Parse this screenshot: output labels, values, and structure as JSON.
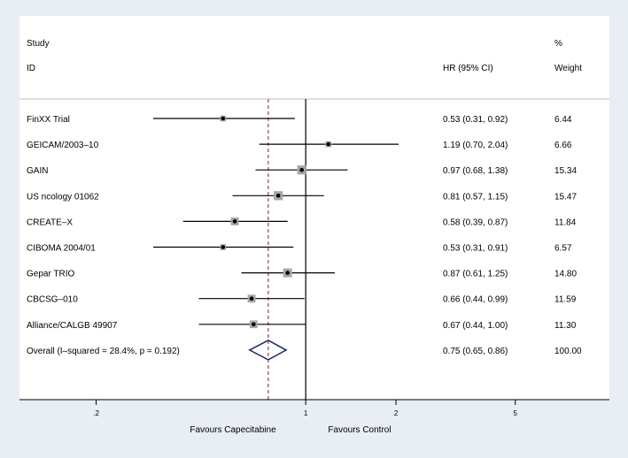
{
  "chart_data": {
    "type": "forest",
    "axis": {
      "scale": "log",
      "xlim": [
        0.111,
        10.3
      ],
      "ticks": [
        {
          "value": 0.2,
          "label": ".2"
        },
        {
          "value": 1,
          "label": "1"
        },
        {
          "value": 2,
          "label": "2"
        },
        {
          "value": 5,
          "label": "5"
        }
      ],
      "null_line": 1,
      "overall_line": 0.75
    },
    "headers": {
      "study_line1": "Study",
      "study_line2": "ID",
      "effect": "HR (95% CI)",
      "weight_line1": "%",
      "weight_line2": "Weight"
    },
    "studies": [
      {
        "name": "FinXX Trial",
        "hr": 0.53,
        "lo": 0.31,
        "hi": 0.92,
        "ci_text": "0.53 (0.31, 0.92)",
        "weight": 6.44,
        "weight_text": "6.44"
      },
      {
        "name": "GEICAM/2003–10",
        "hr": 1.19,
        "lo": 0.7,
        "hi": 2.04,
        "ci_text": "1.19 (0.70, 2.04)",
        "weight": 6.66,
        "weight_text": "6.66"
      },
      {
        "name": "GAIN",
        "hr": 0.97,
        "lo": 0.68,
        "hi": 1.38,
        "ci_text": "0.97 (0.68, 1.38)",
        "weight": 15.34,
        "weight_text": "15.34"
      },
      {
        "name": "US ncology 01062",
        "hr": 0.81,
        "lo": 0.57,
        "hi": 1.15,
        "ci_text": "0.81 (0.57, 1.15)",
        "weight": 15.47,
        "weight_text": "15.47"
      },
      {
        "name": "CREATE–X",
        "hr": 0.58,
        "lo": 0.39,
        "hi": 0.87,
        "ci_text": "0.58 (0.39, 0.87)",
        "weight": 11.84,
        "weight_text": "11.84"
      },
      {
        "name": "CIBOMA 2004/01",
        "hr": 0.53,
        "lo": 0.31,
        "hi": 0.91,
        "ci_text": "0.53 (0.31, 0.91)",
        "weight": 6.57,
        "weight_text": "6.57"
      },
      {
        "name": "Gepar TRIO",
        "hr": 0.87,
        "lo": 0.61,
        "hi": 1.25,
        "ci_text": "0.87 (0.61, 1.25)",
        "weight": 14.8,
        "weight_text": "14.80"
      },
      {
        "name": "CBCSG–010",
        "hr": 0.66,
        "lo": 0.44,
        "hi": 0.99,
        "ci_text": "0.66 (0.44, 0.99)",
        "weight": 11.59,
        "weight_text": "11.59"
      },
      {
        "name": "Alliance/CALGB 49907",
        "hr": 0.67,
        "lo": 0.44,
        "hi": 1.0,
        "ci_text": "0.67 (0.44, 1.00)",
        "weight": 11.3,
        "weight_text": "11.30"
      }
    ],
    "overall": {
      "label": "Overall  (I–squared = 28.4%, p = 0.192)",
      "hr": 0.75,
      "lo": 0.65,
      "hi": 0.86,
      "ci_text": "0.75 (0.65, 0.86)",
      "weight_text": "100.00"
    },
    "favours_left": "Favours Capecitabine",
    "favours_right": "Favours Control",
    "colors": {
      "background": "#e8eef3",
      "plot_area": "#ffffff",
      "box": "#a6a6a6",
      "ci_line": "#000000",
      "diamond": "#1f2e6e",
      "overall_line": "#a52a2a"
    }
  }
}
